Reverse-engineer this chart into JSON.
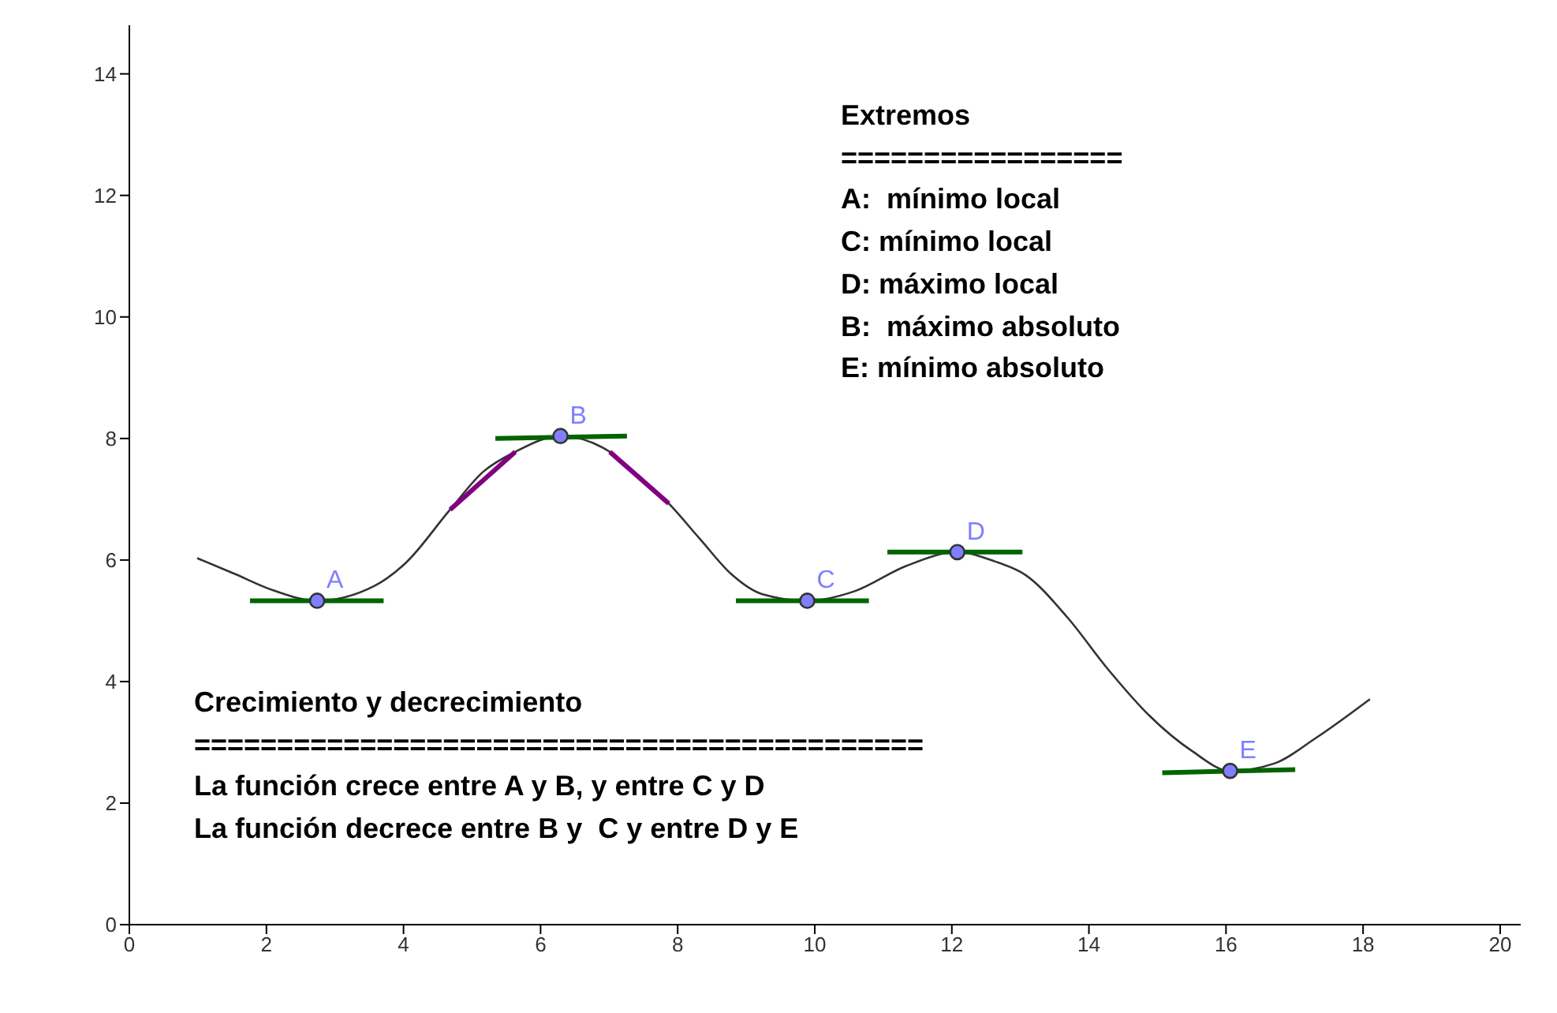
{
  "chart_data": {
    "type": "line",
    "xlim": [
      0,
      20.3
    ],
    "ylim": [
      0,
      14.8
    ],
    "xticks": [
      0,
      2,
      4,
      6,
      8,
      10,
      12,
      14,
      16,
      18,
      20
    ],
    "yticks": [
      0,
      2,
      4,
      6,
      8,
      10,
      12,
      14
    ],
    "series": [
      {
        "color": "#333333",
        "marker": "none",
        "x": [
          0.99,
          1.54,
          2.1,
          2.74,
          3.57,
          4.03,
          4.68,
          5.16,
          5.63,
          6.29,
          7.01,
          7.42,
          7.87,
          8.33,
          8.78,
          9.23,
          9.89,
          10.59,
          11.33,
          12.08,
          12.62,
          13.08,
          13.69,
          14.28,
          14.89,
          15.5,
          16.06,
          16.7,
          17.31,
          18.1
        ],
        "values": [
          6.03,
          5.77,
          5.5,
          5.33,
          5.57,
          5.95,
          6.83,
          7.45,
          7.78,
          8.04,
          7.78,
          7.4,
          6.93,
          6.34,
          5.77,
          5.44,
          5.33,
          5.49,
          5.9,
          6.13,
          5.98,
          5.75,
          5.05,
          4.2,
          3.43,
          2.86,
          2.53,
          2.65,
          3.07,
          3.71
        ]
      },
      {
        "type": "line",
        "color": "#006400",
        "marker": "none",
        "x": [
          1.76,
          3.71
        ],
        "values": [
          5.33,
          5.33
        ]
      },
      {
        "type": "line",
        "color": "#006400",
        "marker": "none",
        "x": [
          5.34,
          7.26
        ],
        "values": [
          8.0,
          8.04
        ]
      },
      {
        "type": "line",
        "color": "#006400",
        "marker": "none",
        "x": [
          8.85,
          10.79
        ],
        "values": [
          5.33,
          5.33
        ]
      },
      {
        "type": "line",
        "color": "#006400",
        "marker": "none",
        "x": [
          11.06,
          13.03
        ],
        "values": [
          6.13,
          6.13
        ]
      },
      {
        "type": "line",
        "color": "#006400",
        "marker": "none",
        "x": [
          15.07,
          17.01
        ],
        "values": [
          2.5,
          2.55
        ]
      },
      {
        "type": "line",
        "color": "#800080",
        "marker": "none",
        "x": [
          4.68,
          5.63
        ],
        "values": [
          6.83,
          7.78
        ]
      },
      {
        "type": "line",
        "color": "#800080",
        "marker": "none",
        "x": [
          7.01,
          7.87
        ],
        "values": [
          7.78,
          6.93
        ]
      },
      {
        "type": "scatter",
        "color": "#7f7fff",
        "marker": "circle",
        "x": [
          2.74,
          6.29,
          9.89,
          12.08,
          16.06
        ],
        "values": [
          5.33,
          8.04,
          5.33,
          6.13,
          2.53
        ]
      }
    ],
    "annotations": [
      {
        "text": "A",
        "x": 2.74,
        "y": 5.33
      },
      {
        "text": "B",
        "x": 6.29,
        "y": 8.04
      },
      {
        "text": "C",
        "x": 9.89,
        "y": 5.33
      },
      {
        "text": "D",
        "x": 12.08,
        "y": 6.13
      },
      {
        "text": "E",
        "x": 16.06,
        "y": 2.53
      },
      "Extremos",
      "=================",
      "A:  mínimo local",
      "C: mínimo local",
      "D: máximo local",
      "B:  máximo absoluto",
      "E: mínimo absoluto",
      "Crecimiento y decrecimiento",
      "============================================",
      "La función crece entre A y B, y entre C y D",
      "La función decrece entre B y  C y entre D y E"
    ]
  }
}
